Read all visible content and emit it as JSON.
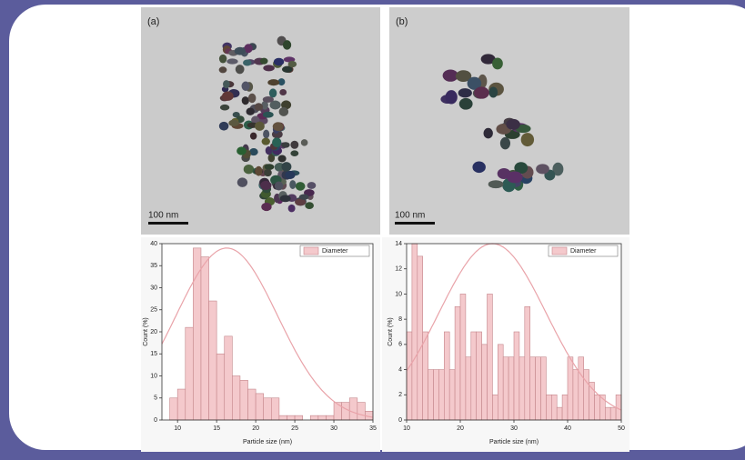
{
  "panels": [
    {
      "label": "(a)",
      "scale_bar": "100 nm"
    },
    {
      "label": "(b)",
      "scale_bar": "100 nm"
    }
  ],
  "chart_data": [
    {
      "type": "histogram",
      "xlabel": "Particle size (nm)",
      "ylabel": "Count (%)",
      "legend": "Diameter",
      "legend_position": "upper right",
      "bins": [
        8,
        9,
        10,
        11,
        12,
        13,
        14,
        15,
        16,
        17,
        18,
        19,
        20,
        21,
        22,
        23,
        24,
        25,
        26,
        27,
        28,
        29,
        30,
        31,
        32,
        33,
        34,
        35
      ],
      "values": [
        0,
        5,
        7,
        21,
        39,
        37,
        27,
        15,
        19,
        10,
        9,
        7,
        6,
        5,
        5,
        1,
        1,
        1,
        0,
        1,
        1,
        1,
        4,
        4,
        5,
        4,
        2
      ],
      "color": "#f4c9cc",
      "edge_color": "#c4868b",
      "fit": {
        "mean": 16.3,
        "sd": 6.5,
        "peak": 39
      },
      "fit_color": "#e9a3a9",
      "xlim": [
        8,
        35
      ],
      "ylim": [
        0,
        40
      ],
      "xticks": [
        10,
        15,
        20,
        25,
        30,
        35
      ],
      "yticks": [
        0,
        5,
        10,
        15,
        20,
        25,
        30,
        35,
        40
      ]
    },
    {
      "type": "histogram",
      "xlabel": "Particle size (nm)",
      "ylabel": "Count (%)",
      "legend": "Diameter",
      "legend_position": "upper right",
      "bins": [
        10,
        11,
        12,
        13,
        14,
        15,
        16,
        17,
        18,
        19,
        20,
        21,
        22,
        23,
        24,
        25,
        26,
        27,
        28,
        29,
        30,
        31,
        32,
        33,
        34,
        35,
        36,
        37,
        38,
        39,
        40,
        41,
        42,
        43,
        44,
        45,
        46,
        47,
        48,
        49,
        50
      ],
      "values": [
        7,
        14,
        13,
        7,
        4,
        4,
        4,
        7,
        4,
        9,
        10,
        5,
        7,
        7,
        6,
        10,
        2,
        6,
        5,
        5,
        7,
        5,
        9,
        5,
        5,
        5,
        2,
        2,
        1,
        2,
        5,
        4,
        5,
        4,
        3,
        2,
        2,
        1,
        1,
        2
      ],
      "color": "#f4c9cc",
      "edge_color": "#c4868b",
      "fit": {
        "mean": 26,
        "sd": 10,
        "peak": 14
      },
      "fit_color": "#e9a3a9",
      "xlim": [
        10,
        50
      ],
      "ylim": [
        0,
        14
      ],
      "xticks": [
        10,
        20,
        30,
        40,
        50
      ],
      "yticks": [
        0,
        2,
        4,
        6,
        8,
        10,
        12,
        14
      ]
    }
  ]
}
